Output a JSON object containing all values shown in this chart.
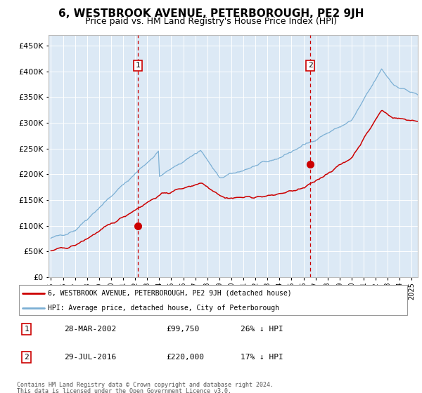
{
  "title": "6, WESTBROOK AVENUE, PETERBOROUGH, PE2 9JH",
  "subtitle": "Price paid vs. HM Land Registry's House Price Index (HPI)",
  "title_fontsize": 11,
  "subtitle_fontsize": 9,
  "bg_color": "#dce9f5",
  "grid_color": "#ffffff",
  "sale1_date": 2002.24,
  "sale1_price": 99750,
  "sale1_label": "1",
  "sale2_date": 2016.57,
  "sale2_price": 220000,
  "sale2_label": "2",
  "red_line_color": "#cc0000",
  "blue_line_color": "#7bafd4",
  "marker_color": "#cc0000",
  "dashed_color": "#cc0000",
  "ylim": [
    0,
    470000
  ],
  "xlim": [
    1994.8,
    2025.5
  ],
  "legend_entry1": "6, WESTBROOK AVENUE, PETERBOROUGH, PE2 9JH (detached house)",
  "legend_entry2": "HPI: Average price, detached house, City of Peterborough",
  "footnote1": "Contains HM Land Registry data © Crown copyright and database right 2024.",
  "footnote2": "This data is licensed under the Open Government Licence v3.0.",
  "table_row1_num": "1",
  "table_row1_date": "28-MAR-2002",
  "table_row1_price": "£99,750",
  "table_row1_hpi": "26% ↓ HPI",
  "table_row2_num": "2",
  "table_row2_date": "29-JUL-2016",
  "table_row2_price": "£220,000",
  "table_row2_hpi": "17% ↓ HPI"
}
